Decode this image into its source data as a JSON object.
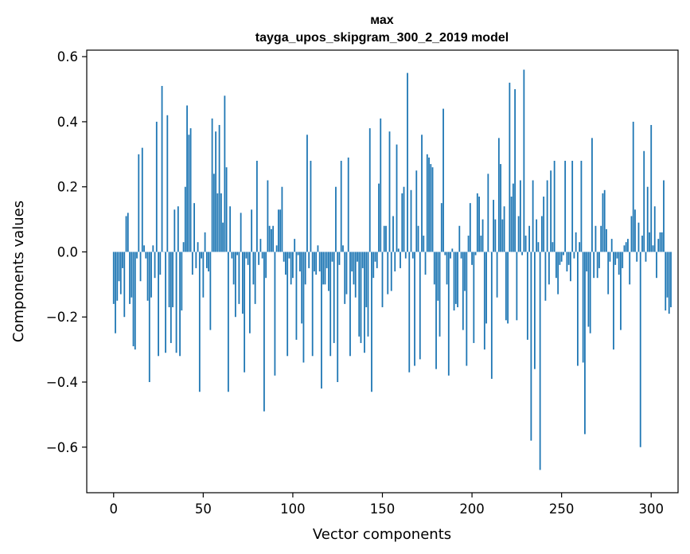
{
  "chart_data": {
    "type": "bar",
    "title_line1": "мах",
    "title_line2": "tayga_upos_skipgram_300_2_2019 model",
    "xlabel": "Vector components",
    "ylabel": "Components values",
    "xlim": [
      -15,
      315
    ],
    "ylim": [
      -0.74,
      0.62
    ],
    "xticks": [
      0,
      50,
      100,
      150,
      200,
      250,
      300
    ],
    "xtick_labels": [
      "0",
      "50",
      "100",
      "150",
      "200",
      "250",
      "300"
    ],
    "yticks": [
      -0.6,
      -0.4,
      -0.2,
      0.0,
      0.2,
      0.4,
      0.6
    ],
    "ytick_labels": [
      "−0.6",
      "−0.4",
      "−0.2",
      "0.0",
      "0.2",
      "0.4",
      "0.6"
    ],
    "bar_color": "#1f77b4",
    "values": [
      -0.16,
      -0.25,
      -0.15,
      -0.09,
      -0.13,
      -0.05,
      -0.2,
      0.11,
      0.12,
      -0.16,
      -0.14,
      -0.29,
      -0.3,
      -0.02,
      0.3,
      -0.09,
      0.32,
      0.02,
      -0.02,
      -0.15,
      -0.4,
      -0.14,
      0.02,
      -0.08,
      0.4,
      -0.32,
      -0.07,
      0.51,
      0.0,
      -0.31,
      0.42,
      -0.17,
      -0.28,
      -0.17,
      0.13,
      -0.31,
      0.14,
      -0.32,
      -0.18,
      0.03,
      0.2,
      0.45,
      0.36,
      0.38,
      -0.07,
      0.15,
      -0.05,
      0.03,
      -0.43,
      -0.02,
      -0.14,
      0.06,
      -0.05,
      -0.06,
      -0.24,
      0.41,
      0.24,
      0.37,
      0.18,
      0.39,
      0.18,
      0.09,
      0.48,
      0.26,
      -0.43,
      0.14,
      -0.02,
      -0.1,
      -0.2,
      -0.01,
      -0.16,
      0.12,
      -0.19,
      -0.37,
      -0.02,
      -0.04,
      -0.25,
      0.13,
      -0.1,
      -0.16,
      0.28,
      -0.04,
      0.04,
      -0.02,
      -0.49,
      -0.08,
      0.22,
      0.08,
      0.07,
      0.08,
      -0.38,
      0.02,
      0.13,
      0.13,
      0.2,
      -0.03,
      -0.07,
      -0.32,
      -0.02,
      -0.1,
      -0.08,
      0.04,
      -0.27,
      -0.01,
      -0.06,
      -0.22,
      -0.34,
      -0.1,
      0.36,
      -0.05,
      0.28,
      -0.32,
      -0.06,
      -0.07,
      0.02,
      -0.06,
      -0.42,
      -0.1,
      -0.1,
      -0.05,
      -0.12,
      -0.32,
      -0.03,
      -0.28,
      0.2,
      -0.4,
      -0.04,
      0.28,
      0.02,
      -0.16,
      -0.13,
      0.29,
      -0.32,
      -0.06,
      -0.1,
      -0.14,
      -0.03,
      -0.26,
      -0.28,
      -0.05,
      -0.31,
      -0.17,
      -0.26,
      0.38,
      -0.43,
      -0.08,
      -0.03,
      -0.05,
      0.21,
      0.41,
      -0.17,
      0.08,
      0.08,
      -0.13,
      0.37,
      -0.12,
      0.11,
      -0.06,
      0.33,
      0.01,
      -0.05,
      0.18,
      0.2,
      -0.02,
      0.55,
      -0.37,
      0.19,
      -0.02,
      -0.35,
      0.25,
      0.08,
      -0.33,
      0.36,
      0.05,
      -0.07,
      0.3,
      0.29,
      0.27,
      0.26,
      -0.1,
      -0.36,
      -0.15,
      -0.26,
      0.15,
      0.44,
      -0.01,
      -0.1,
      -0.38,
      -0.02,
      0.01,
      -0.18,
      -0.16,
      -0.17,
      0.08,
      -0.02,
      -0.24,
      -0.12,
      -0.35,
      0.05,
      0.15,
      -0.04,
      -0.28,
      -0.01,
      0.18,
      0.17,
      0.05,
      0.1,
      -0.3,
      -0.22,
      0.24,
      0.0,
      -0.39,
      0.16,
      0.1,
      -0.14,
      0.35,
      0.27,
      0.1,
      0.14,
      -0.21,
      -0.22,
      0.52,
      0.17,
      0.21,
      0.5,
      -0.21,
      0.11,
      0.22,
      -0.01,
      0.56,
      0.05,
      -0.27,
      0.08,
      -0.58,
      0.22,
      -0.36,
      0.1,
      0.03,
      -0.67,
      0.11,
      0.17,
      -0.15,
      0.22,
      -0.1,
      0.25,
      0.03,
      0.28,
      -0.08,
      -0.13,
      -0.04,
      -0.03,
      -0.01,
      0.28,
      -0.06,
      -0.04,
      -0.09,
      0.28,
      -0.02,
      0.06,
      -0.35,
      0.03,
      0.28,
      -0.34,
      -0.56,
      -0.06,
      -0.23,
      -0.25,
      0.35,
      -0.08,
      0.08,
      -0.08,
      -0.05,
      0.08,
      0.18,
      0.19,
      0.07,
      -0.13,
      -0.03,
      0.04,
      -0.3,
      -0.04,
      -0.02,
      -0.07,
      -0.24,
      -0.05,
      0.02,
      0.03,
      0.04,
      -0.1,
      0.11,
      0.4,
      0.13,
      -0.03,
      0.09,
      -0.6,
      0.05,
      0.31,
      -0.03,
      0.2,
      0.06,
      0.39,
      0.02,
      0.14,
      -0.08,
      0.04,
      0.06,
      0.06,
      0.22,
      -0.18,
      -0.14,
      -0.19,
      -0.17
    ]
  }
}
